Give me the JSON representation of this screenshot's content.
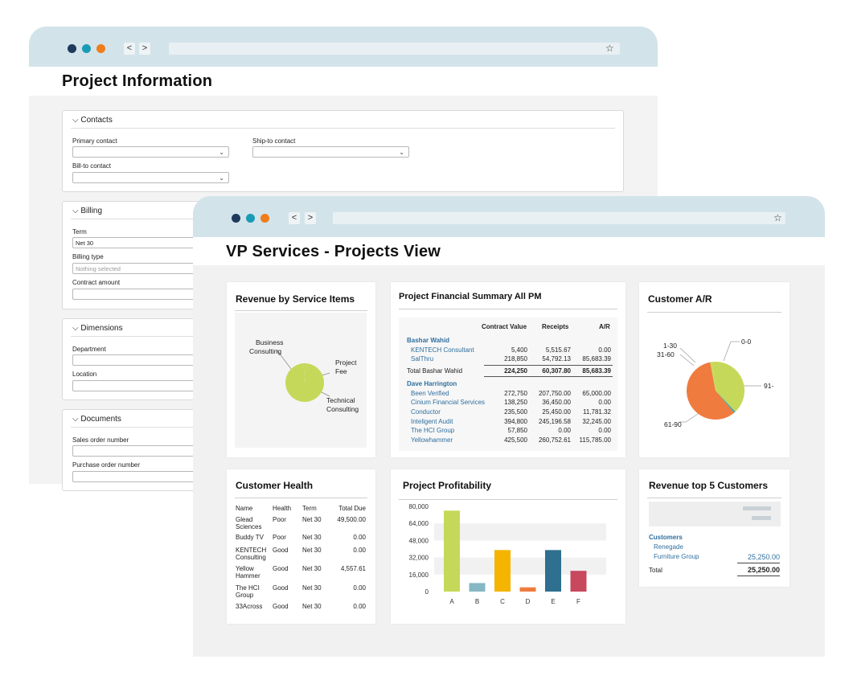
{
  "colors": {
    "chrome_bg": "#d3e3ea",
    "dot_navy": "#1f3a5c",
    "dot_teal": "#1a9bb5",
    "dot_orange": "#ef7d1a",
    "link": "#2f6f9f",
    "pie_green": "#c6d859",
    "pie_orange": "#ef7b3e",
    "pie_teal": "#4aa3a8"
  },
  "back_window": {
    "nav_back": "<",
    "nav_forward": ">",
    "star": "☆",
    "title": "Project Information",
    "contacts": {
      "header": "Contacts",
      "primary_contact_label": "Primary contact",
      "ship_to_label": "Ship-to contact",
      "bill_to_label": "Bill-to contact"
    },
    "billing": {
      "header": "Billing",
      "term_label": "Term",
      "term_value": "Net 30",
      "billing_type_label": "Billing type",
      "billing_type_placeholder": "Nothing selected",
      "contract_amount_label": "Contract amount"
    },
    "dimensions": {
      "header": "Dimensions",
      "department_label": "Department",
      "location_label": "Location"
    },
    "documents": {
      "header": "Documents",
      "sales_order_label": "Sales order number",
      "purchase_order_label": "Purchase order number"
    }
  },
  "front_window": {
    "nav_back": "<",
    "nav_forward": ">",
    "star": "☆",
    "title": "VP Services - Projects View",
    "revenue_service": {
      "title": "Revenue by  Service Items",
      "labels": {
        "business": [
          "Business",
          "Consulting"
        ],
        "project": [
          "Project",
          "Fee"
        ],
        "technical": [
          "Technical",
          "Consulting"
        ]
      }
    },
    "financial_summary": {
      "title": "Project Financial Summary All PM",
      "columns": [
        "Contract Value",
        "Receipts",
        "A/R"
      ],
      "groups": [
        {
          "manager": "Bashar Wahid",
          "rows": [
            {
              "name": "KENTECH Consultant",
              "contract": "5,400",
              "receipts": "5,515.67",
              "ar": "0.00"
            },
            {
              "name": "SalThru",
              "contract": "218,850",
              "receipts": "54,792.13",
              "ar": "85,683.39"
            }
          ],
          "total": {
            "name": "Total Bashar Wahid",
            "contract": "224,250",
            "receipts": "60,307.80",
            "ar": "85,683.39"
          }
        },
        {
          "manager": "Dave Harrington",
          "rows": [
            {
              "name": "Been Verified",
              "contract": "272,750",
              "receipts": "207,750.00",
              "ar": "65,000.00"
            },
            {
              "name": "Cinium Financial Services",
              "contract": "138,250",
              "receipts": "36,450.00",
              "ar": "0.00"
            },
            {
              "name": "Conductor",
              "contract": "235,500",
              "receipts": "25,450.00",
              "ar": "11,781.32"
            },
            {
              "name": "Inteligent Audit",
              "contract": "394,800",
              "receipts": "245,196.58",
              "ar": "32,245.00"
            },
            {
              "name": "The HCI Group",
              "contract": "57,850",
              "receipts": "0.00",
              "ar": "0.00"
            },
            {
              "name": "Yellowhammer",
              "contract": "425,500",
              "receipts": "260,752.61",
              "ar": "115,785.00"
            }
          ]
        }
      ]
    },
    "customer_ar": {
      "title": "Customer A/R",
      "labels": {
        "l1_30": "1-30",
        "l31_60": "31-60",
        "l0_0": "0-0",
        "l91": "91-",
        "l61_90": "61-90"
      }
    },
    "customer_health": {
      "title": "Customer Health",
      "columns": [
        "Name",
        "Health",
        "Term",
        "Total Due"
      ],
      "rows": [
        {
          "name": "Glead Sciences",
          "health": "Poor",
          "term": "Net 30",
          "due": "49,500.00"
        },
        {
          "name": "Buddy TV",
          "health": "Poor",
          "term": "Net 30",
          "due": "0.00"
        },
        {
          "name": "KENTECH Consulting",
          "health": "Good",
          "term": "Net 30",
          "due": "0.00"
        },
        {
          "name": "Yellow Hammer",
          "health": "Good",
          "term": "Net 30",
          "due": "4,557.61"
        },
        {
          "name": "The HCI Group",
          "health": "Good",
          "term": "Net 30",
          "due": "0.00"
        },
        {
          "name": "33Across",
          "health": "Good",
          "term": "Net 30",
          "due": "0.00"
        }
      ]
    },
    "profitability": {
      "title": "Project Profitability"
    },
    "revenue_top5": {
      "title": "Revenue top 5 Customers",
      "customers_header": "Customers",
      "rows": [
        {
          "name": "Renegade",
          "value": ""
        },
        {
          "name": "Furniture Group",
          "value": "25,250.00"
        }
      ],
      "total_label": "Total",
      "total_value": "25,250.00"
    }
  },
  "chart_data": [
    {
      "type": "pie",
      "title": "Revenue by  Service Items",
      "categories": [
        "Business Consulting",
        "Project Fee",
        "Technical Consulting"
      ],
      "values": [
        1,
        98,
        1
      ],
      "colors": [
        "#c6d859",
        "#c6d859",
        "#c6d859"
      ]
    },
    {
      "type": "pie",
      "title": "Customer A/R",
      "categories": [
        "0-0",
        "91-",
        "61-90",
        "31-60",
        "1-30"
      ],
      "values": [
        38,
        1,
        58,
        1,
        2
      ],
      "colors": [
        "#c6d859",
        "#4aa3a8",
        "#ef7b3e",
        "#c6d859",
        "#c6d859"
      ]
    },
    {
      "type": "bar",
      "title": "Project Profitability",
      "categories": [
        "A",
        "B",
        "C",
        "D",
        "E",
        "F"
      ],
      "values": [
        76000,
        8000,
        39000,
        4000,
        39000,
        19500
      ],
      "colors": [
        "#c6d859",
        "#86b7c4",
        "#f4b400",
        "#ef7b3e",
        "#2f6f8f",
        "#c8485e"
      ],
      "yticks": [
        "80,000",
        "64,000",
        "48,000",
        "32,000",
        "16,000",
        "0"
      ],
      "ylim": [
        0,
        80000
      ],
      "grid": "alternating bands"
    }
  ]
}
